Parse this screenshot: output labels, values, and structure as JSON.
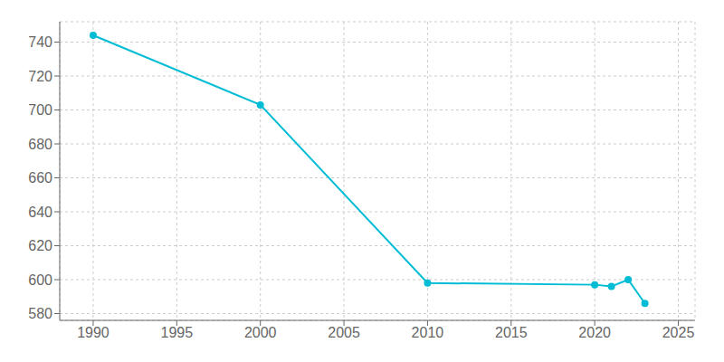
{
  "chart_data": {
    "type": "line",
    "x": [
      1990,
      2000,
      2010,
      2020,
      2021,
      2022,
      2023
    ],
    "values": [
      744,
      703,
      598,
      597,
      596,
      600,
      586
    ],
    "color": "#00BCD4",
    "marker": "circle",
    "xlim": [
      1988,
      2026
    ],
    "ylim": [
      576,
      752
    ],
    "xticks": [
      1990,
      1995,
      2000,
      2005,
      2010,
      2015,
      2020,
      2025
    ],
    "yticks": [
      580,
      600,
      620,
      640,
      660,
      680,
      700,
      720,
      740
    ],
    "grid": true
  }
}
